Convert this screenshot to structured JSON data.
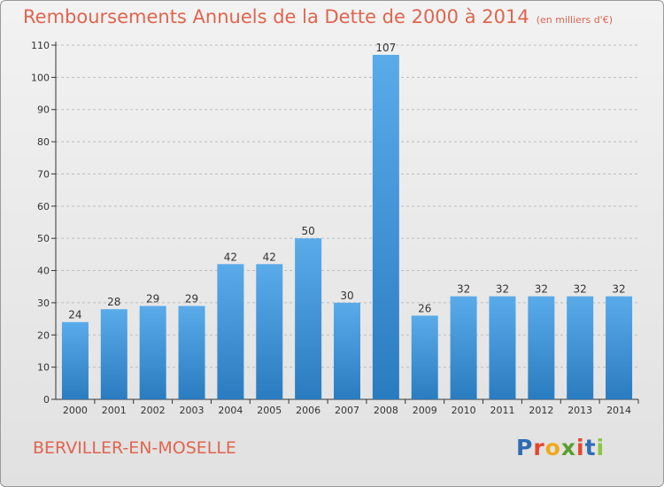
{
  "header": {
    "title": "Remboursements Annuels de la Dette de 2000 à 2014",
    "unit_note": "(en milliers d'€)"
  },
  "footer": {
    "place": "BERVILLER-EN-MOSELLE",
    "logo_text": "Proxiti",
    "logo_colors": [
      "#2f6db3",
      "#e8452c",
      "#f1a81c",
      "#5b9e2e",
      "#e8452c",
      "#2f6db3",
      "#8cc63f"
    ]
  },
  "colors": {
    "title": "#e0654e",
    "bar_light": "#5aabea",
    "bar_dark": "#2a7cc0",
    "axis": "#333333",
    "grid": "#bdbdbd"
  },
  "chart_data": {
    "type": "bar",
    "title": "Remboursements Annuels de la Dette de 2000 à 2014",
    "subtitle": "(en milliers d'€)",
    "categories": [
      "2000",
      "2001",
      "2002",
      "2003",
      "2004",
      "2005",
      "2006",
      "2007",
      "2008",
      "2009",
      "2010",
      "2011",
      "2012",
      "2013",
      "2014"
    ],
    "values": [
      24,
      28,
      29,
      29,
      42,
      42,
      50,
      30,
      107,
      26,
      32,
      32,
      32,
      32,
      32
    ],
    "ylim": [
      0,
      110
    ],
    "yticks": [
      0,
      10,
      20,
      30,
      40,
      50,
      60,
      70,
      80,
      90,
      100,
      110
    ],
    "grid": true,
    "legend": "none"
  }
}
